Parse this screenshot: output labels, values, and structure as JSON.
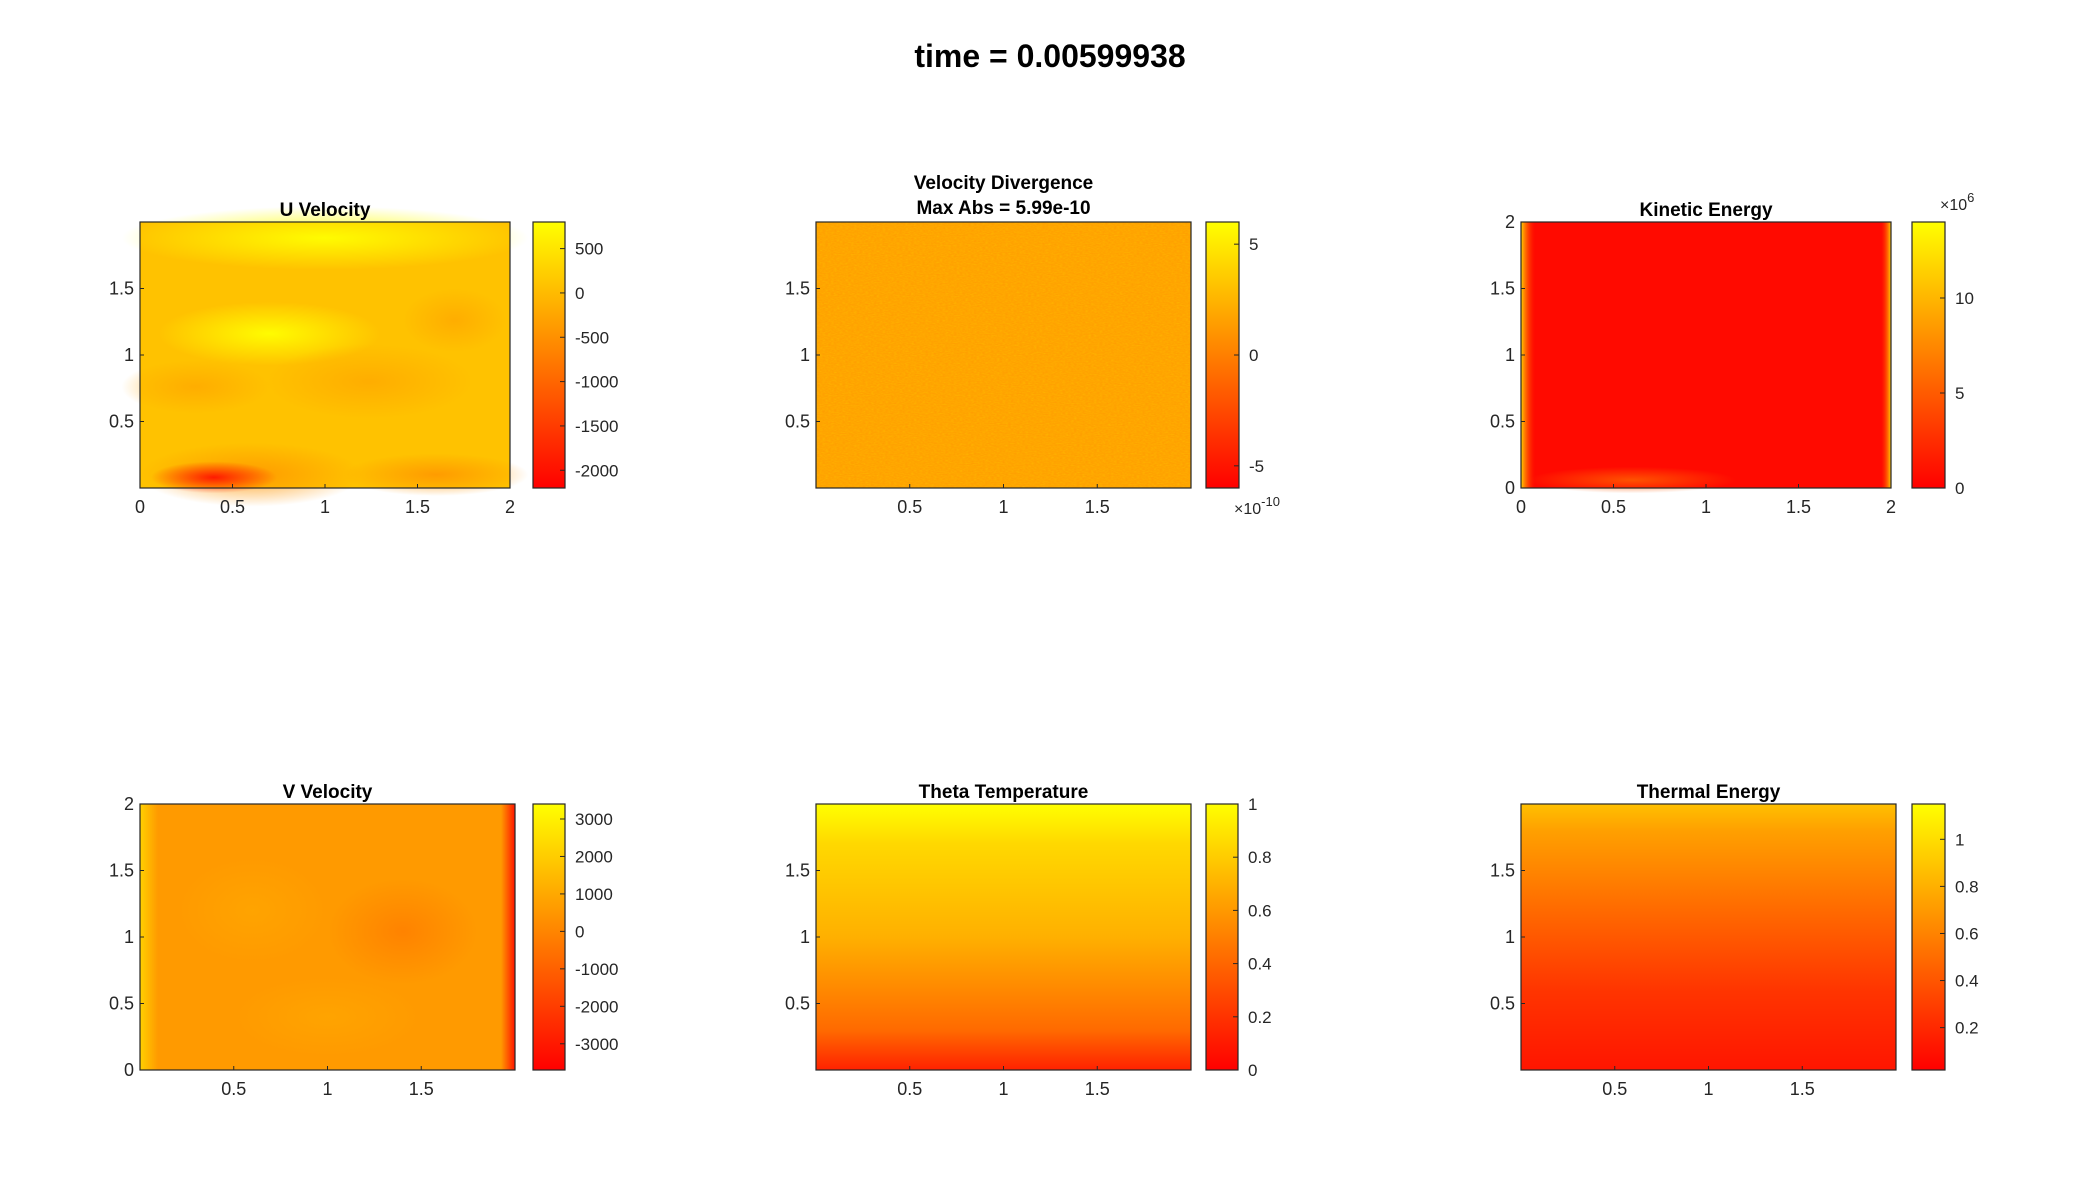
{
  "figure": {
    "title": "time = 0.00599938",
    "colormap": {
      "name": "autumn",
      "low": "#ff0000",
      "high": "#ffff00"
    }
  },
  "chart_data": [
    {
      "type": "heatmap",
      "title": "U Velocity",
      "xlim": [
        0,
        2
      ],
      "ylim": [
        0,
        2
      ],
      "xticks": [
        0,
        0.5,
        1,
        1.5,
        2
      ],
      "yticks": [
        0.5,
        1,
        1.5
      ],
      "colorbar": {
        "range": [
          -2200,
          800
        ],
        "ticks": [
          500,
          0,
          -500,
          -1000,
          -1500,
          -2000
        ],
        "exponent": ""
      }
    },
    {
      "type": "heatmap",
      "title": "Velocity Divergence",
      "subtitle": "Max Abs = 5.99e-10",
      "xlim": [
        0,
        2
      ],
      "ylim": [
        0,
        2
      ],
      "xticks": [
        0.5,
        1,
        1.5
      ],
      "yticks": [
        0.5,
        1,
        1.5
      ],
      "colorbar": {
        "range": [
          -6,
          6
        ],
        "ticks": [
          5,
          0,
          -5
        ],
        "exponent": "-10"
      }
    },
    {
      "type": "heatmap",
      "title": "Kinetic Energy",
      "xlim": [
        0,
        2
      ],
      "ylim": [
        0,
        2
      ],
      "xticks": [
        0,
        0.5,
        1,
        1.5,
        2
      ],
      "yticks": [
        0,
        0.5,
        1,
        1.5,
        2
      ],
      "colorbar": {
        "range": [
          0,
          14
        ],
        "ticks": [
          10,
          5,
          0
        ],
        "exponent": "6"
      }
    },
    {
      "type": "heatmap",
      "title": "V Velocity",
      "xlim": [
        0,
        2
      ],
      "ylim": [
        0,
        2
      ],
      "xticks": [
        0.5,
        1,
        1.5
      ],
      "yticks": [
        0,
        0.5,
        1,
        1.5,
        2
      ],
      "colorbar": {
        "range": [
          -3700,
          3400
        ],
        "ticks": [
          3000,
          2000,
          1000,
          0,
          -1000,
          -2000,
          -3000
        ],
        "exponent": ""
      }
    },
    {
      "type": "heatmap",
      "title": "Theta Temperature",
      "xlim": [
        0,
        2
      ],
      "ylim": [
        0,
        2
      ],
      "xticks": [
        0.5,
        1,
        1.5
      ],
      "yticks": [
        0.5,
        1,
        1.5
      ],
      "colorbar": {
        "range": [
          0,
          1
        ],
        "ticks": [
          1,
          0.8,
          0.6,
          0.4,
          0.2,
          0
        ],
        "exponent": ""
      }
    },
    {
      "type": "heatmap",
      "title": "Thermal Energy",
      "xlim": [
        0,
        2
      ],
      "ylim": [
        0,
        2
      ],
      "xticks": [
        0.5,
        1,
        1.5
      ],
      "yticks": [
        0.5,
        1,
        1.5
      ],
      "colorbar": {
        "range": [
          0.02,
          1.15
        ],
        "ticks": [
          1,
          0.8,
          0.6,
          0.4,
          0.2
        ],
        "exponent": ""
      }
    }
  ]
}
